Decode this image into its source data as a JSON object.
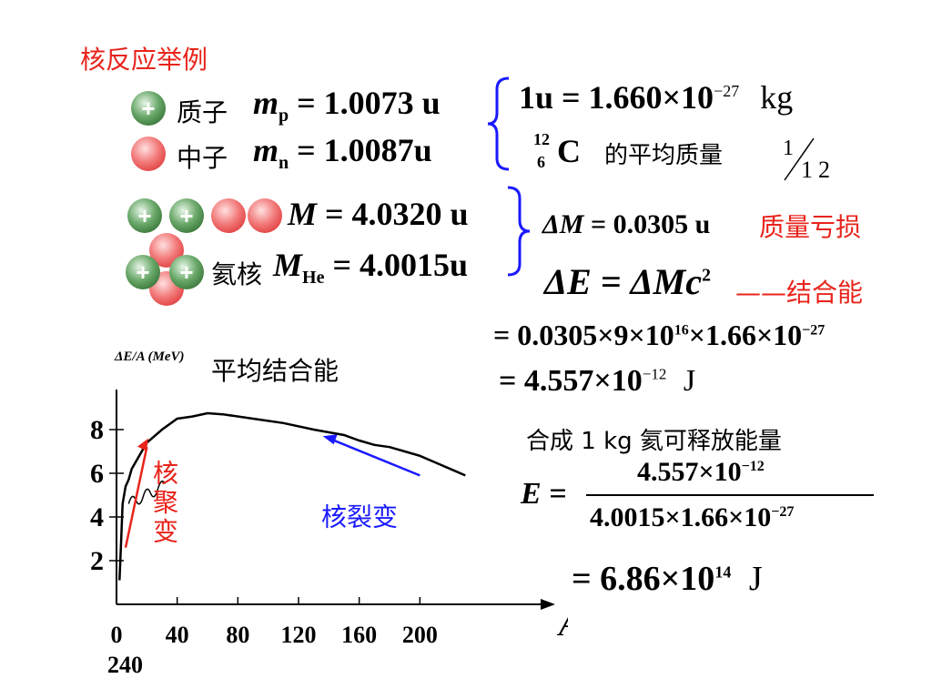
{
  "title": "核反应举例",
  "proton": {
    "symbol": "+",
    "label": "质子",
    "lhs": "m",
    "sub": "p",
    "value": "= 1.0073 u"
  },
  "neutron": {
    "label": "中子",
    "lhs": "m",
    "sub": "n",
    "value": "= 1.0087u"
  },
  "unit_def": {
    "line1": "1u = 1.660×10",
    "exp1": "−27",
    "unit1": "kg",
    "c_mass": "12",
    "c_atomic": "6",
    "c_symbol": "C",
    "c_text": "的平均质量",
    "frac_num": "1",
    "frac_den": "12"
  },
  "nucleons": {
    "lhs": "M",
    "value": "= 4.0320 u"
  },
  "helium": {
    "label": "氦核",
    "lhs": "M",
    "sub": "He",
    "value": "= 4.0015u"
  },
  "mass_defect": {
    "lhs": "ΔM",
    "value": "= 0.0305 u",
    "tag": "质量亏损"
  },
  "binding_energy": {
    "eq": "ΔE = ΔMc",
    "exp": "2",
    "tag": "——结合能"
  },
  "calc1": {
    "text": "= 0.0305×9×10",
    "e1": "16",
    "mid": "×1.66×10",
    "e2": "−27"
  },
  "calc2": {
    "text": "= 4.557×10",
    "e1": "−12",
    "unit": "J"
  },
  "synth_text": "合成 1 kg 氦可释放能量",
  "energy_frac": {
    "lhs": "E =",
    "num": "4.557×10",
    "num_exp": "−12",
    "den": "4.0015×1.66×10",
    "den_exp": "−27"
  },
  "energy_result": {
    "text": "= 6.86×10",
    "exp": "14",
    "unit": "J"
  },
  "chart_data": {
    "type": "line",
    "title": "平均结合能",
    "ylabel": "ΔE/A (MeV)",
    "xlabel": "A",
    "xlim": [
      0,
      240
    ],
    "ylim": [
      0,
      10
    ],
    "x_ticks": [
      "0",
      "40",
      "80",
      "120",
      "160",
      "200",
      "240"
    ],
    "y_ticks": [
      "8",
      "6",
      "4",
      "2"
    ],
    "series": [
      {
        "x": [
          2,
          3,
          4,
          6,
          8,
          10,
          15,
          20,
          30,
          40,
          50,
          60,
          70,
          90,
          110,
          130,
          150,
          160,
          170,
          180,
          190,
          200,
          210,
          220,
          230
        ],
        "y": [
          1.1,
          2.8,
          4.6,
          5.4,
          5.7,
          6.2,
          6.8,
          7.4,
          8.0,
          8.5,
          8.6,
          8.75,
          8.7,
          8.5,
          8.3,
          8.0,
          7.75,
          7.5,
          7.3,
          7.2,
          7.0,
          6.8,
          6.5,
          6.2,
          5.9
        ],
        "color": "#000000"
      }
    ],
    "annotations": [
      {
        "text": "核聚变",
        "color": "#e8241c"
      },
      {
        "text": "核裂变",
        "color": "#1a1aff"
      }
    ]
  }
}
